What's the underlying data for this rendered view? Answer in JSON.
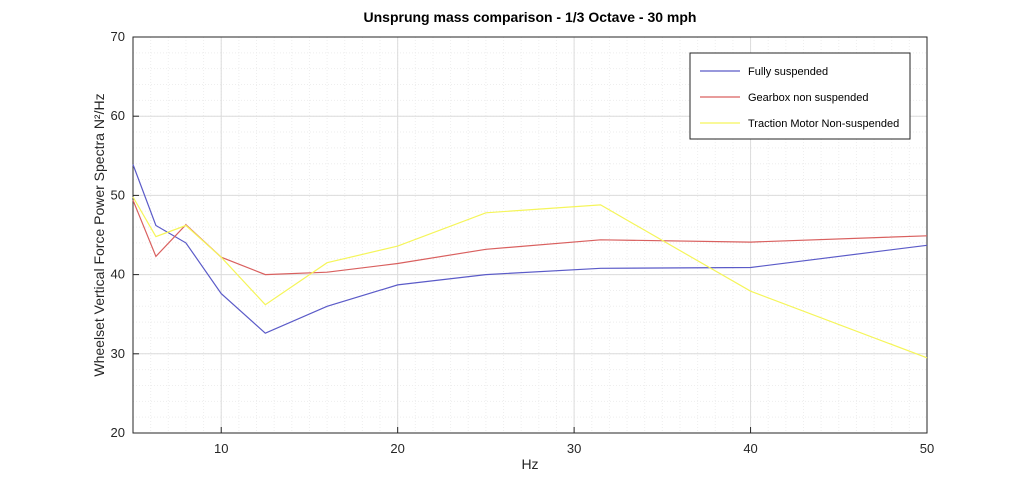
{
  "chart_data": {
    "type": "line",
    "title": "Unsprung mass comparison - 1/3 Octave - 30 mph",
    "xlabel": "Hz",
    "ylabel": "Wheelset Vertical Force Power Spectra N²/Hz",
    "xlim": [
      5,
      50
    ],
    "ylim": [
      20,
      70
    ],
    "xticks": [
      10,
      20,
      30,
      40,
      50
    ],
    "yticks": [
      20,
      30,
      40,
      50,
      60,
      70
    ],
    "grid": true,
    "minor_grid": true,
    "legend_position": "top-right",
    "x": [
      5,
      6.3,
      8,
      10,
      12.5,
      16,
      20,
      25,
      31.5,
      40,
      50
    ],
    "series": [
      {
        "name": "Fully suspended",
        "color": "#5b5bc8",
        "values": [
          53.9,
          46.2,
          44.0,
          37.6,
          32.6,
          36.0,
          38.7,
          40.0,
          40.8,
          40.9,
          43.7
        ]
      },
      {
        "name": "Gearbox non suspended",
        "color": "#d9605f",
        "values": [
          49.4,
          42.3,
          46.3,
          42.2,
          40.0,
          40.3,
          41.4,
          43.2,
          44.4,
          44.1,
          44.9
        ]
      },
      {
        "name": "Traction Motor Non-suspended",
        "color": "#f5f55a",
        "values": [
          49.8,
          44.8,
          46.2,
          42.2,
          36.2,
          41.5,
          43.6,
          47.8,
          48.8,
          37.9,
          29.5
        ]
      }
    ]
  }
}
